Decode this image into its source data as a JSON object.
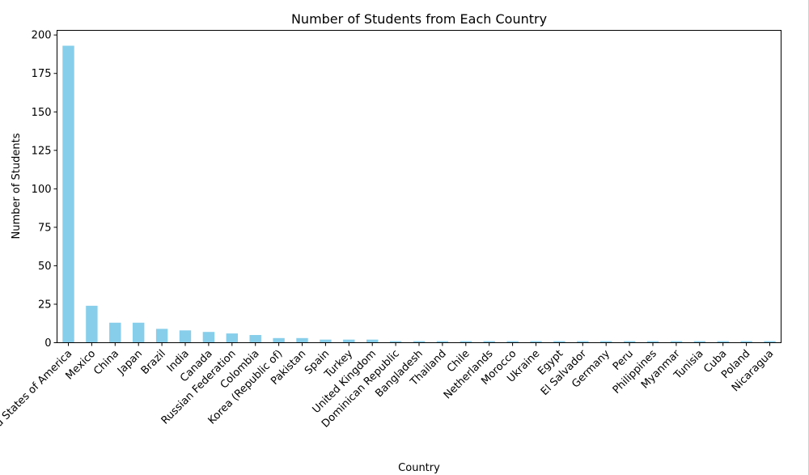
{
  "chart_data": {
    "type": "bar",
    "title": "Number of Students from Each Country",
    "xlabel": "Country",
    "ylabel": "Number of Students",
    "ylim": [
      0,
      203
    ],
    "yticks": [
      0,
      25,
      50,
      75,
      100,
      125,
      150,
      175,
      200
    ],
    "grid": false,
    "bar_color": "#87ceeb",
    "categories": [
      "United States of America",
      "Mexico",
      "China",
      "Japan",
      "Brazil",
      "India",
      "Canada",
      "Russian Federation",
      "Colombia",
      "Korea (Republic of)",
      "Pakistan",
      "Spain",
      "Turkey",
      "United Kingdom",
      "Dominican Republic",
      "Bangladesh",
      "Thailand",
      "Chile",
      "Netherlands",
      "Morocco",
      "Ukraine",
      "Egypt",
      "El Salvador",
      "Germany",
      "Peru",
      "Philippines",
      "Myanmar",
      "Tunisia",
      "Cuba",
      "Poland",
      "Nicaragua"
    ],
    "values": [
      193,
      24,
      13,
      13,
      9,
      8,
      7,
      6,
      5,
      3,
      3,
      2,
      2,
      2,
      1,
      1,
      1,
      1,
      1,
      1,
      1,
      1,
      1,
      1,
      1,
      1,
      1,
      1,
      1,
      1,
      1
    ]
  }
}
